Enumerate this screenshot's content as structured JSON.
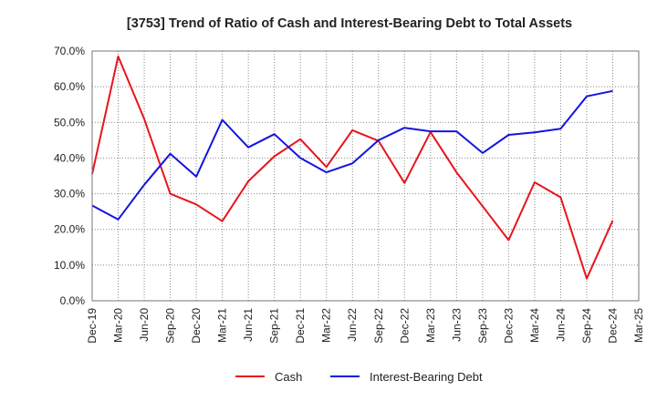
{
  "chart_data": {
    "type": "line",
    "title": "[3753]  Trend of Ratio of Cash and Interest-Bearing Debt to Total Assets",
    "xlabel": "",
    "ylabel": "",
    "ylim": [
      0,
      70
    ],
    "yticks": [
      "0.0%",
      "10.0%",
      "20.0%",
      "30.0%",
      "40.0%",
      "50.0%",
      "60.0%",
      "70.0%"
    ],
    "categories": [
      "Dec-19",
      "Mar-20",
      "Jun-20",
      "Sep-20",
      "Dec-20",
      "Mar-21",
      "Jun-21",
      "Sep-21",
      "Dec-21",
      "Mar-22",
      "Jun-22",
      "Sep-22",
      "Dec-22",
      "Mar-23",
      "Jun-23",
      "Sep-23",
      "Dec-23",
      "Mar-24",
      "Jun-24",
      "Sep-24",
      "Dec-24",
      "Mar-25"
    ],
    "grid": true,
    "legend_position": "bottom",
    "series": [
      {
        "name": "Cash",
        "color": "#e8141c",
        "values": [
          35.5,
          68.5,
          51.0,
          30.0,
          27.0,
          22.3,
          33.5,
          40.5,
          45.3,
          37.5,
          47.8,
          44.8,
          33.0,
          47.3,
          36.0,
          26.5,
          17.0,
          33.2,
          29.0,
          6.2,
          22.5,
          null
        ]
      },
      {
        "name": "Interest-Bearing Debt",
        "color": "#1414e0",
        "values": [
          26.7,
          22.8,
          32.5,
          41.2,
          34.8,
          50.7,
          43.0,
          46.7,
          40.0,
          36.0,
          38.5,
          45.0,
          48.5,
          47.5,
          47.5,
          41.4,
          46.5,
          47.2,
          48.2,
          57.3,
          58.8,
          null
        ]
      }
    ]
  }
}
